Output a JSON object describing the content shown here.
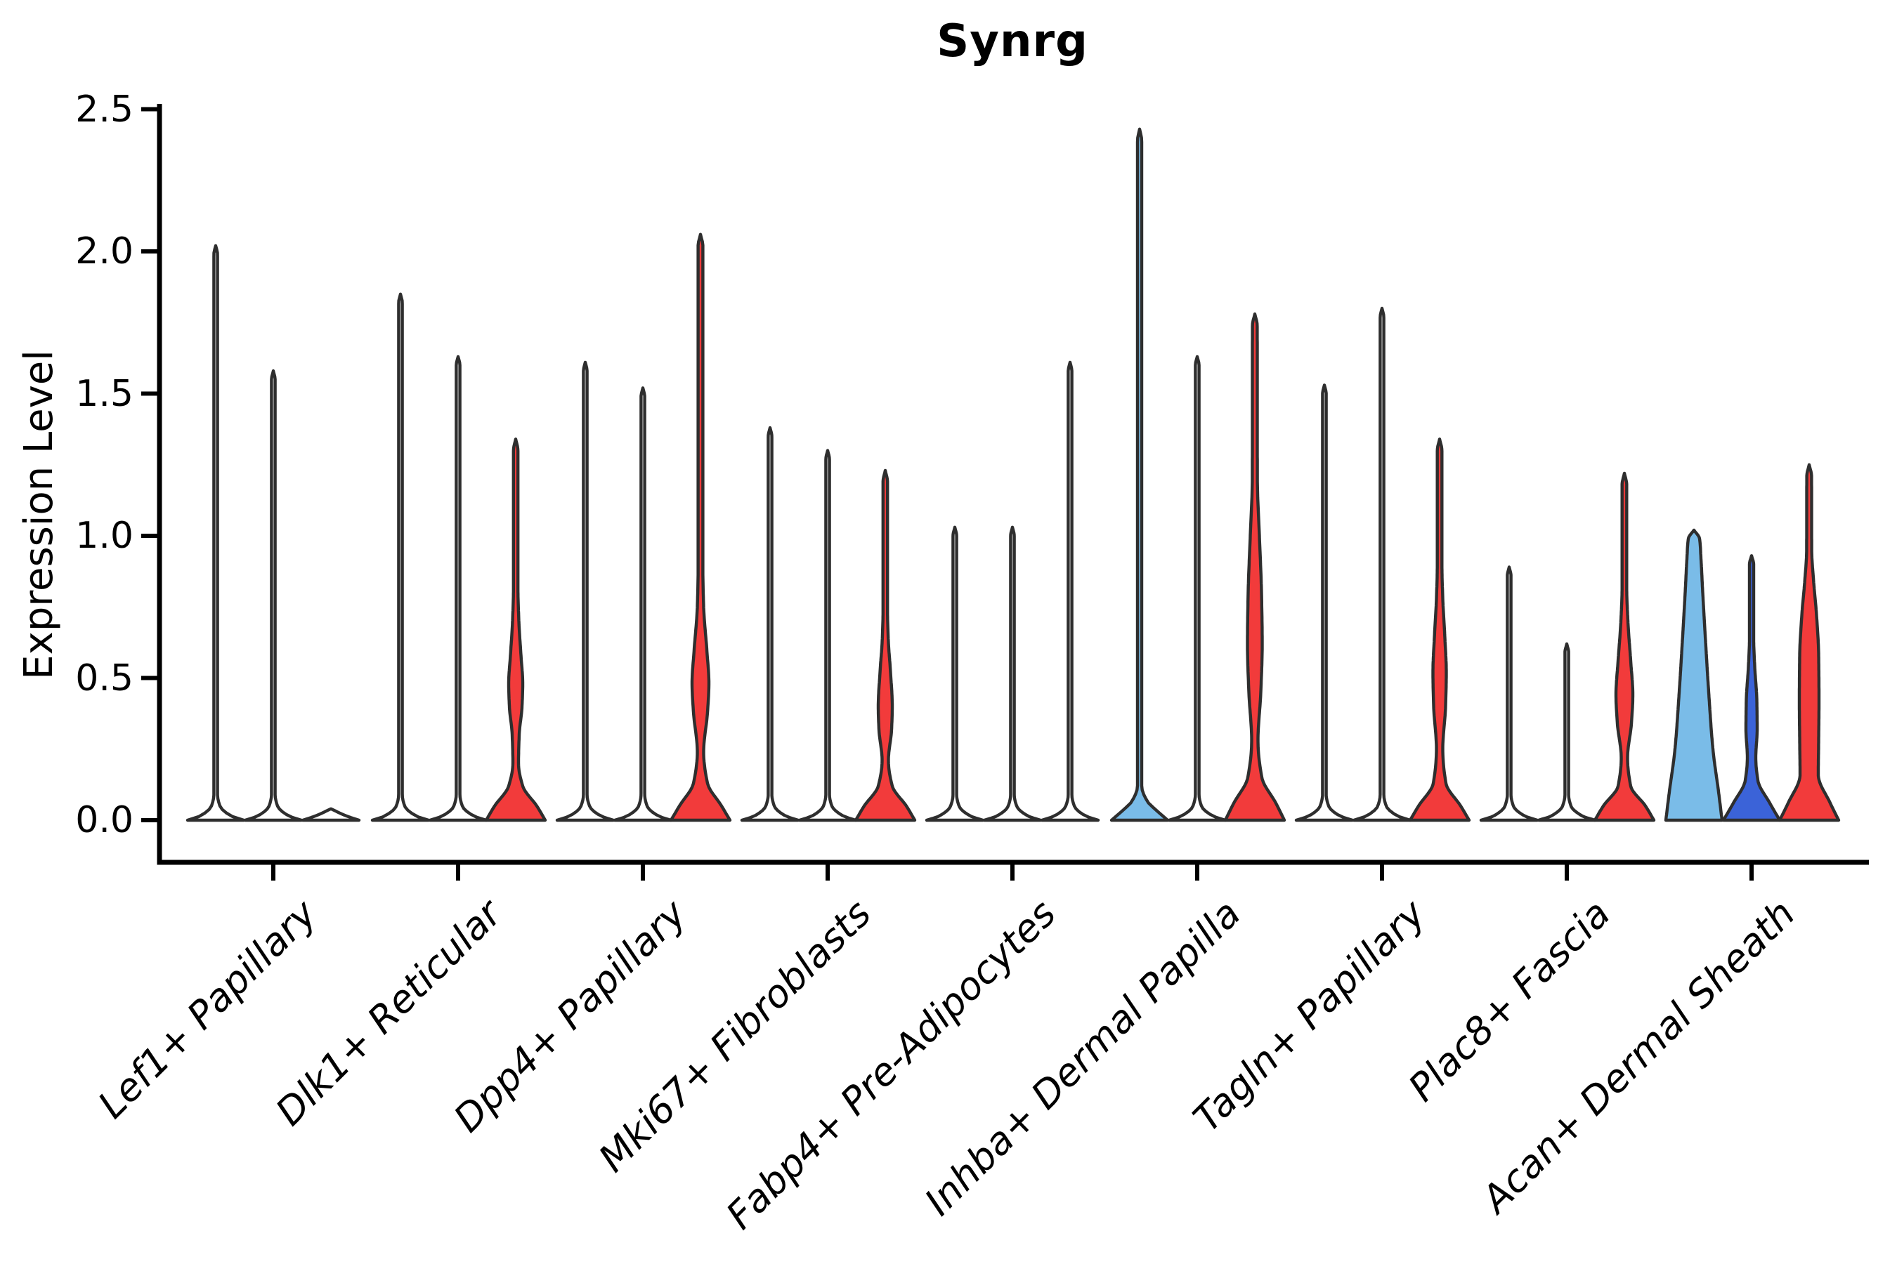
{
  "colors": {
    "red": "#F23B3B",
    "light_blue": "#7ABCE8",
    "dark_blue": "#3B63D8",
    "outline": "#2E2E2E",
    "white": "#FFFFFF",
    "text": "#000000"
  },
  "chart_data": {
    "type": "violin",
    "title": "Synrg",
    "ylabel": "Expression Level",
    "xlabel": "",
    "grid": false,
    "legend": "none",
    "ylim": [
      -0.15,
      2.55
    ],
    "ytick_values": [
      0.0,
      0.5,
      1.0,
      1.5,
      2.0,
      2.5
    ],
    "ytick_labels": [
      "0.0",
      "0.5",
      "1.0",
      "1.5",
      "2.0",
      "2.5"
    ],
    "categories": [
      "Lef1+ Papillary",
      "Dlk1+ Reticular",
      "Dpp4+ Papillary",
      "Mki67+ Fibroblasts",
      "Fabp4+ Pre-Adipocytes",
      "Inhba+ Dermal Papilla",
      "Tagln+ Papillary",
      "Plac8+ Fascia",
      "Acan+ Dermal Sheath"
    ],
    "violins": [
      {
        "category": "Lef1+ Papillary",
        "cat_index": 0,
        "slot": 0,
        "fill": "#FFFFFF",
        "max_expression": 2.02,
        "profile": [
          [
            0,
            40
          ],
          [
            0.015,
            22
          ],
          [
            0.05,
            6
          ],
          [
            0.09,
            2.6
          ],
          [
            1.99,
            2.6
          ],
          [
            2.02,
            0
          ]
        ]
      },
      {
        "category": "Lef1+ Papillary",
        "cat_index": 0,
        "slot": 1,
        "fill": "#FFFFFF",
        "max_expression": 1.58,
        "profile": [
          [
            0,
            40
          ],
          [
            0.015,
            22
          ],
          [
            0.05,
            6
          ],
          [
            0.09,
            2.6
          ],
          [
            1.55,
            2.6
          ],
          [
            1.58,
            0
          ]
        ]
      },
      {
        "category": "Lef1+ Papillary",
        "cat_index": 0,
        "slot": 2,
        "fill": "#FFFFFF",
        "max_expression": 0.04,
        "profile": [
          [
            0,
            40
          ],
          [
            0.015,
            22
          ],
          [
            0.04,
            0
          ]
        ]
      },
      {
        "category": "Dlk1+ Reticular",
        "cat_index": 1,
        "slot": 0,
        "fill": "#FFFFFF",
        "max_expression": 1.85,
        "profile": [
          [
            0,
            40
          ],
          [
            0.015,
            22
          ],
          [
            0.05,
            6
          ],
          [
            0.09,
            2.6
          ],
          [
            1.82,
            2.6
          ],
          [
            1.85,
            0
          ]
        ]
      },
      {
        "category": "Dlk1+ Reticular",
        "cat_index": 1,
        "slot": 1,
        "fill": "#FFFFFF",
        "max_expression": 1.63,
        "profile": [
          [
            0,
            40
          ],
          [
            0.015,
            22
          ],
          [
            0.05,
            6
          ],
          [
            0.09,
            2.6
          ],
          [
            1.6,
            2.6
          ],
          [
            1.63,
            0
          ]
        ]
      },
      {
        "category": "Dlk1+ Reticular",
        "cat_index": 1,
        "slot": 2,
        "fill": "#F23B3B",
        "max_expression": 1.34,
        "profile": [
          [
            0,
            42
          ],
          [
            0.05,
            30
          ],
          [
            0.12,
            10
          ],
          [
            0.2,
            4
          ],
          [
            0.3,
            5
          ],
          [
            0.4,
            9
          ],
          [
            0.48,
            10
          ],
          [
            0.58,
            7.5
          ],
          [
            0.7,
            4.5
          ],
          [
            0.82,
            3.2
          ],
          [
            1.3,
            3.2
          ],
          [
            1.34,
            0
          ]
        ]
      },
      {
        "category": "Dpp4+ Papillary",
        "cat_index": 2,
        "slot": 0,
        "fill": "#FFFFFF",
        "max_expression": 1.61,
        "profile": [
          [
            0,
            40
          ],
          [
            0.015,
            22
          ],
          [
            0.05,
            6
          ],
          [
            0.09,
            2.6
          ],
          [
            1.58,
            2.6
          ],
          [
            1.61,
            0
          ]
        ]
      },
      {
        "category": "Dpp4+ Papillary",
        "cat_index": 2,
        "slot": 1,
        "fill": "#FFFFFF",
        "max_expression": 1.52,
        "profile": [
          [
            0,
            40
          ],
          [
            0.015,
            22
          ],
          [
            0.05,
            6
          ],
          [
            0.09,
            2.6
          ],
          [
            1.49,
            2.6
          ],
          [
            1.52,
            0
          ]
        ]
      },
      {
        "category": "Dpp4+ Papillary",
        "cat_index": 2,
        "slot": 2,
        "fill": "#F23B3B",
        "max_expression": 2.06,
        "profile": [
          [
            0,
            42
          ],
          [
            0.05,
            30
          ],
          [
            0.13,
            10
          ],
          [
            0.24,
            4.5
          ],
          [
            0.38,
            10
          ],
          [
            0.48,
            12
          ],
          [
            0.6,
            9
          ],
          [
            0.75,
            4.5
          ],
          [
            0.88,
            3.4
          ],
          [
            2.02,
            3.4
          ],
          [
            2.06,
            0
          ]
        ]
      },
      {
        "category": "Mki67+ Fibroblasts",
        "cat_index": 3,
        "slot": 0,
        "fill": "#FFFFFF",
        "max_expression": 1.38,
        "profile": [
          [
            0,
            40
          ],
          [
            0.015,
            22
          ],
          [
            0.05,
            6
          ],
          [
            0.09,
            2.6
          ],
          [
            1.35,
            2.6
          ],
          [
            1.38,
            0
          ]
        ]
      },
      {
        "category": "Mki67+ Fibroblasts",
        "cat_index": 3,
        "slot": 1,
        "fill": "#FFFFFF",
        "max_expression": 1.3,
        "profile": [
          [
            0,
            40
          ],
          [
            0.015,
            22
          ],
          [
            0.05,
            6
          ],
          [
            0.09,
            2.6
          ],
          [
            1.27,
            2.6
          ],
          [
            1.3,
            0
          ]
        ]
      },
      {
        "category": "Mki67+ Fibroblasts",
        "cat_index": 3,
        "slot": 2,
        "fill": "#F23B3B",
        "max_expression": 1.23,
        "profile": [
          [
            0,
            42
          ],
          [
            0.05,
            30
          ],
          [
            0.12,
            10
          ],
          [
            0.21,
            4.5
          ],
          [
            0.32,
            9
          ],
          [
            0.4,
            10
          ],
          [
            0.52,
            7.5
          ],
          [
            0.64,
            4.2
          ],
          [
            0.74,
            3.2
          ],
          [
            1.19,
            3.2
          ],
          [
            1.23,
            0
          ]
        ]
      },
      {
        "category": "Fabp4+ Pre-Adipocytes",
        "cat_index": 4,
        "slot": 0,
        "fill": "#FFFFFF",
        "max_expression": 1.03,
        "profile": [
          [
            0,
            40
          ],
          [
            0.015,
            22
          ],
          [
            0.05,
            6
          ],
          [
            0.09,
            2.6
          ],
          [
            1.0,
            2.6
          ],
          [
            1.03,
            0
          ]
        ]
      },
      {
        "category": "Fabp4+ Pre-Adipocytes",
        "cat_index": 4,
        "slot": 1,
        "fill": "#FFFFFF",
        "max_expression": 1.03,
        "profile": [
          [
            0,
            40
          ],
          [
            0.015,
            22
          ],
          [
            0.05,
            6
          ],
          [
            0.09,
            2.6
          ],
          [
            1.0,
            2.6
          ],
          [
            1.03,
            0
          ]
        ]
      },
      {
        "category": "Fabp4+ Pre-Adipocytes",
        "cat_index": 4,
        "slot": 2,
        "fill": "#FFFFFF",
        "max_expression": 1.61,
        "profile": [
          [
            0,
            40
          ],
          [
            0.015,
            22
          ],
          [
            0.05,
            6
          ],
          [
            0.09,
            2.6
          ],
          [
            1.58,
            2.6
          ],
          [
            1.61,
            0
          ]
        ]
      },
      {
        "category": "Inhba+ Dermal Papilla",
        "cat_index": 5,
        "slot": 0,
        "fill": "#7ABCE8",
        "max_expression": 2.43,
        "profile": [
          [
            0,
            40
          ],
          [
            0.03,
            26
          ],
          [
            0.07,
            10
          ],
          [
            0.12,
            3
          ],
          [
            2.39,
            3
          ],
          [
            2.43,
            0
          ]
        ]
      },
      {
        "category": "Inhba+ Dermal Papilla",
        "cat_index": 5,
        "slot": 1,
        "fill": "#FFFFFF",
        "max_expression": 1.63,
        "profile": [
          [
            0,
            40
          ],
          [
            0.015,
            22
          ],
          [
            0.05,
            6
          ],
          [
            0.09,
            2.6
          ],
          [
            1.6,
            2.6
          ],
          [
            1.63,
            0
          ]
        ]
      },
      {
        "category": "Inhba+ Dermal Papilla",
        "cat_index": 5,
        "slot": 2,
        "fill": "#F23B3B",
        "max_expression": 1.78,
        "profile": [
          [
            0,
            42
          ],
          [
            0.06,
            30
          ],
          [
            0.15,
            10
          ],
          [
            0.28,
            4.5
          ],
          [
            0.45,
            8.5
          ],
          [
            0.62,
            10.5
          ],
          [
            0.8,
            9.5
          ],
          [
            1.0,
            6.5
          ],
          [
            1.2,
            3.6
          ],
          [
            1.74,
            3.4
          ],
          [
            1.78,
            0
          ]
        ]
      },
      {
        "category": "Tagln+ Papillary",
        "cat_index": 6,
        "slot": 0,
        "fill": "#FFFFFF",
        "max_expression": 1.53,
        "profile": [
          [
            0,
            40
          ],
          [
            0.015,
            22
          ],
          [
            0.05,
            6
          ],
          [
            0.09,
            2.6
          ],
          [
            1.5,
            2.6
          ],
          [
            1.53,
            0
          ]
        ]
      },
      {
        "category": "Tagln+ Papillary",
        "cat_index": 6,
        "slot": 1,
        "fill": "#FFFFFF",
        "max_expression": 1.8,
        "profile": [
          [
            0,
            40
          ],
          [
            0.015,
            22
          ],
          [
            0.05,
            6
          ],
          [
            0.09,
            2.6
          ],
          [
            1.77,
            2.6
          ],
          [
            1.8,
            0
          ]
        ]
      },
      {
        "category": "Tagln+ Papillary",
        "cat_index": 6,
        "slot": 2,
        "fill": "#F23B3B",
        "max_expression": 1.34,
        "profile": [
          [
            0,
            42
          ],
          [
            0.05,
            30
          ],
          [
            0.13,
            9
          ],
          [
            0.25,
            4.5
          ],
          [
            0.4,
            8.5
          ],
          [
            0.52,
            9.5
          ],
          [
            0.64,
            7.5
          ],
          [
            0.78,
            4.5
          ],
          [
            0.9,
            3.3
          ],
          [
            1.3,
            3.3
          ],
          [
            1.34,
            0
          ]
        ]
      },
      {
        "category": "Plac8+ Fascia",
        "cat_index": 7,
        "slot": 0,
        "fill": "#FFFFFF",
        "max_expression": 0.89,
        "profile": [
          [
            0,
            40
          ],
          [
            0.015,
            22
          ],
          [
            0.05,
            6
          ],
          [
            0.09,
            2.6
          ],
          [
            0.86,
            2.6
          ],
          [
            0.89,
            0
          ]
        ]
      },
      {
        "category": "Plac8+ Fascia",
        "cat_index": 7,
        "slot": 1,
        "fill": "#FFFFFF",
        "max_expression": 0.62,
        "profile": [
          [
            0,
            40
          ],
          [
            0.015,
            22
          ],
          [
            0.05,
            6
          ],
          [
            0.09,
            2.6
          ],
          [
            0.59,
            2.6
          ],
          [
            0.62,
            0
          ]
        ]
      },
      {
        "category": "Plac8+ Fascia",
        "cat_index": 7,
        "slot": 2,
        "fill": "#F23B3B",
        "max_expression": 1.22,
        "profile": [
          [
            0,
            42
          ],
          [
            0.05,
            30
          ],
          [
            0.12,
            9
          ],
          [
            0.22,
            4.5
          ],
          [
            0.34,
            10
          ],
          [
            0.44,
            12
          ],
          [
            0.56,
            9
          ],
          [
            0.7,
            5
          ],
          [
            0.82,
            3.3
          ],
          [
            1.18,
            3.3
          ],
          [
            1.22,
            0
          ]
        ]
      },
      {
        "category": "Acan+ Dermal Sheath",
        "cat_index": 8,
        "slot": 0,
        "fill": "#7ABCE8",
        "max_expression": 1.02,
        "profile": [
          [
            0,
            40
          ],
          [
            0.1,
            35
          ],
          [
            0.25,
            27
          ],
          [
            0.45,
            21
          ],
          [
            0.65,
            16
          ],
          [
            0.8,
            12.5
          ],
          [
            0.92,
            10
          ],
          [
            0.99,
            8
          ],
          [
            1.02,
            0
          ]
        ]
      },
      {
        "category": "Acan+ Dermal Sheath",
        "cat_index": 8,
        "slot": 1,
        "fill": "#3B63D8",
        "max_expression": 0.93,
        "profile": [
          [
            0,
            40
          ],
          [
            0.06,
            26
          ],
          [
            0.14,
            9
          ],
          [
            0.22,
            6
          ],
          [
            0.32,
            8
          ],
          [
            0.42,
            7.5
          ],
          [
            0.54,
            4.5
          ],
          [
            0.64,
            3
          ],
          [
            0.9,
            3
          ],
          [
            0.93,
            0
          ]
        ]
      },
      {
        "category": "Acan+ Dermal Sheath",
        "cat_index": 8,
        "slot": 2,
        "fill": "#F23B3B",
        "max_expression": 1.25,
        "profile": [
          [
            0,
            42
          ],
          [
            0.06,
            30
          ],
          [
            0.16,
            13
          ],
          [
            0.28,
            13.5
          ],
          [
            0.42,
            14
          ],
          [
            0.58,
            13.5
          ],
          [
            0.72,
            10.5
          ],
          [
            0.85,
            6
          ],
          [
            0.95,
            3.6
          ],
          [
            1.21,
            3.4
          ],
          [
            1.25,
            0
          ]
        ]
      }
    ]
  }
}
